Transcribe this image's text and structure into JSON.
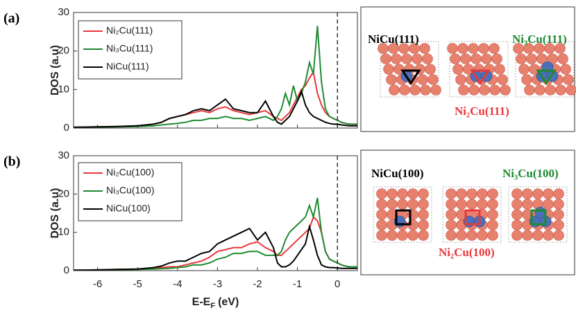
{
  "chart_data": [
    {
      "type": "line",
      "panel_label": "(a)",
      "y_label": "DOS (a.u)",
      "x": [
        -6.6,
        -6,
        -5.5,
        -5,
        -4.6,
        -4.4,
        -4.2,
        -4,
        -3.8,
        -3.6,
        -3.4,
        -3.2,
        -3,
        -2.8,
        -2.6,
        -2.4,
        -2.2,
        -2,
        -1.8,
        -1.6,
        -1.5,
        -1.4,
        -1.3,
        -1.2,
        -1.1,
        -1,
        -0.9,
        -0.8,
        -0.7,
        -0.6,
        -0.5,
        -0.4,
        -0.3,
        -0.2,
        -0.1,
        0,
        0.1,
        0.2,
        0.3,
        0.4,
        0.5
      ],
      "series": [
        {
          "name": "Ni₂Cu(111)",
          "color": "#e8373a",
          "values": [
            0.2,
            0.3,
            0.4,
            0.6,
            1,
            1.5,
            2.5,
            3,
            3.5,
            4,
            4.5,
            4,
            5,
            5.5,
            4.5,
            4,
            3.5,
            4,
            4.5,
            3,
            2.5,
            2,
            3,
            4,
            6,
            8,
            10,
            11,
            13,
            14.5,
            9,
            6,
            4,
            3,
            2.5,
            2,
            1.5,
            1.2,
            1,
            1,
            1
          ]
        },
        {
          "name": "Ni₃Cu(111)",
          "color": "#1e8a32",
          "values": [
            0.2,
            0.2,
            0.3,
            0.4,
            0.6,
            0.8,
            1,
            1.2,
            1.5,
            2,
            2,
            2.5,
            2.5,
            3,
            2.5,
            2.5,
            2,
            2.5,
            3,
            2,
            3,
            5,
            9,
            6,
            11,
            7,
            9,
            12,
            17,
            14,
            26.5,
            12,
            5,
            3,
            2.5,
            2,
            1.5,
            1.2,
            1,
            1,
            1
          ]
        },
        {
          "name": "NiCu(111)",
          "color": "#000000",
          "values": [
            0.2,
            0.3,
            0.4,
            0.6,
            1,
            1.5,
            2.5,
            3,
            3.5,
            4.5,
            5,
            4.5,
            6,
            7.5,
            5,
            4.5,
            4,
            4,
            7,
            3,
            1.5,
            1,
            2,
            3,
            5,
            7,
            9.5,
            6,
            4,
            3,
            2.5,
            2,
            1.5,
            1.2,
            1,
            1,
            0.8,
            0.7,
            0.6,
            0.6,
            0.6
          ]
        }
      ],
      "xlim": [
        -6.6,
        0.5
      ],
      "xticks": [
        -6,
        -5,
        -4,
        -3,
        -2,
        -1,
        0
      ],
      "show_xtick_labels": false,
      "ylim": [
        0,
        30
      ],
      "yticks": [
        0,
        10,
        20,
        30
      ],
      "vline": 0,
      "annotations": [
        {
          "text": "NiCu(111)",
          "color": "#000000"
        },
        {
          "text": "Ni₃Cu(111)",
          "color": "#1e8a32"
        },
        {
          "text": "Ni₂Cu(111)",
          "color": "#e8373a"
        }
      ]
    },
    {
      "type": "line",
      "panel_label": "(b)",
      "y_label": "DOS (a.u)",
      "x_label": {
        "main": "E-E",
        "sub": "F",
        "unit": "(eV)"
      },
      "x": [
        -6.6,
        -6,
        -5.5,
        -5,
        -4.6,
        -4.4,
        -4.2,
        -4,
        -3.8,
        -3.6,
        -3.4,
        -3.2,
        -3,
        -2.8,
        -2.6,
        -2.4,
        -2.2,
        -2,
        -1.8,
        -1.6,
        -1.5,
        -1.4,
        -1.3,
        -1.2,
        -1.1,
        -1,
        -0.9,
        -0.8,
        -0.7,
        -0.6,
        -0.5,
        -0.4,
        -0.3,
        -0.2,
        -0.1,
        0,
        0.1,
        0.2,
        0.3,
        0.4,
        0.5
      ],
      "series": [
        {
          "name": "Ni₂Cu(100)",
          "color": "#e8373a",
          "values": [
            0.1,
            0.2,
            0.3,
            0.4,
            0.6,
            0.8,
            1,
            1,
            1.5,
            2,
            2.5,
            3.5,
            5,
            5.5,
            6,
            6,
            7,
            7.5,
            6,
            5,
            4,
            4,
            5,
            6,
            7,
            8,
            9,
            10,
            11,
            14,
            13,
            10,
            5,
            3,
            2.5,
            2,
            1.5,
            1.2,
            1,
            1,
            1
          ]
        },
        {
          "name": "Ni₃Cu(100)",
          "color": "#1e8a32",
          "values": [
            0.1,
            0.1,
            0.2,
            0.3,
            0.4,
            0.5,
            0.6,
            0.8,
            1,
            1.5,
            1.5,
            2,
            3,
            3.5,
            4.5,
            4.5,
            5,
            5,
            4,
            4,
            4,
            5,
            8,
            10,
            11,
            12,
            13,
            14,
            17,
            14,
            19,
            10,
            5,
            3,
            2.5,
            2,
            1.5,
            1.2,
            1,
            1,
            1
          ]
        },
        {
          "name": "NiCu(100)",
          "color": "#000000",
          "values": [
            0.1,
            0.2,
            0.3,
            0.4,
            0.8,
            1.2,
            2,
            2.5,
            2.5,
            3.5,
            4.5,
            5,
            7,
            8,
            9,
            10,
            11,
            8,
            10,
            6,
            2,
            1,
            1,
            1.5,
            2.5,
            4,
            5.5,
            7,
            11.5,
            8,
            4,
            1.5,
            1,
            0.8,
            0.8,
            0.7,
            0.6,
            0.6,
            0.6,
            0.6,
            0.6
          ]
        }
      ],
      "xlim": [
        -6.6,
        0.5
      ],
      "xticks": [
        -6,
        -5,
        -4,
        -3,
        -2,
        -1,
        0
      ],
      "show_xtick_labels": true,
      "ylim": [
        0,
        30
      ],
      "yticks": [
        0,
        10,
        20,
        30
      ],
      "vline": 0,
      "annotations": [
        {
          "text": "NiCu(100)",
          "color": "#000000"
        },
        {
          "text": "Ni₃Cu(100)",
          "color": "#1e8a32"
        },
        {
          "text": "Ni₂Cu(100)",
          "color": "#e8373a"
        }
      ]
    }
  ]
}
